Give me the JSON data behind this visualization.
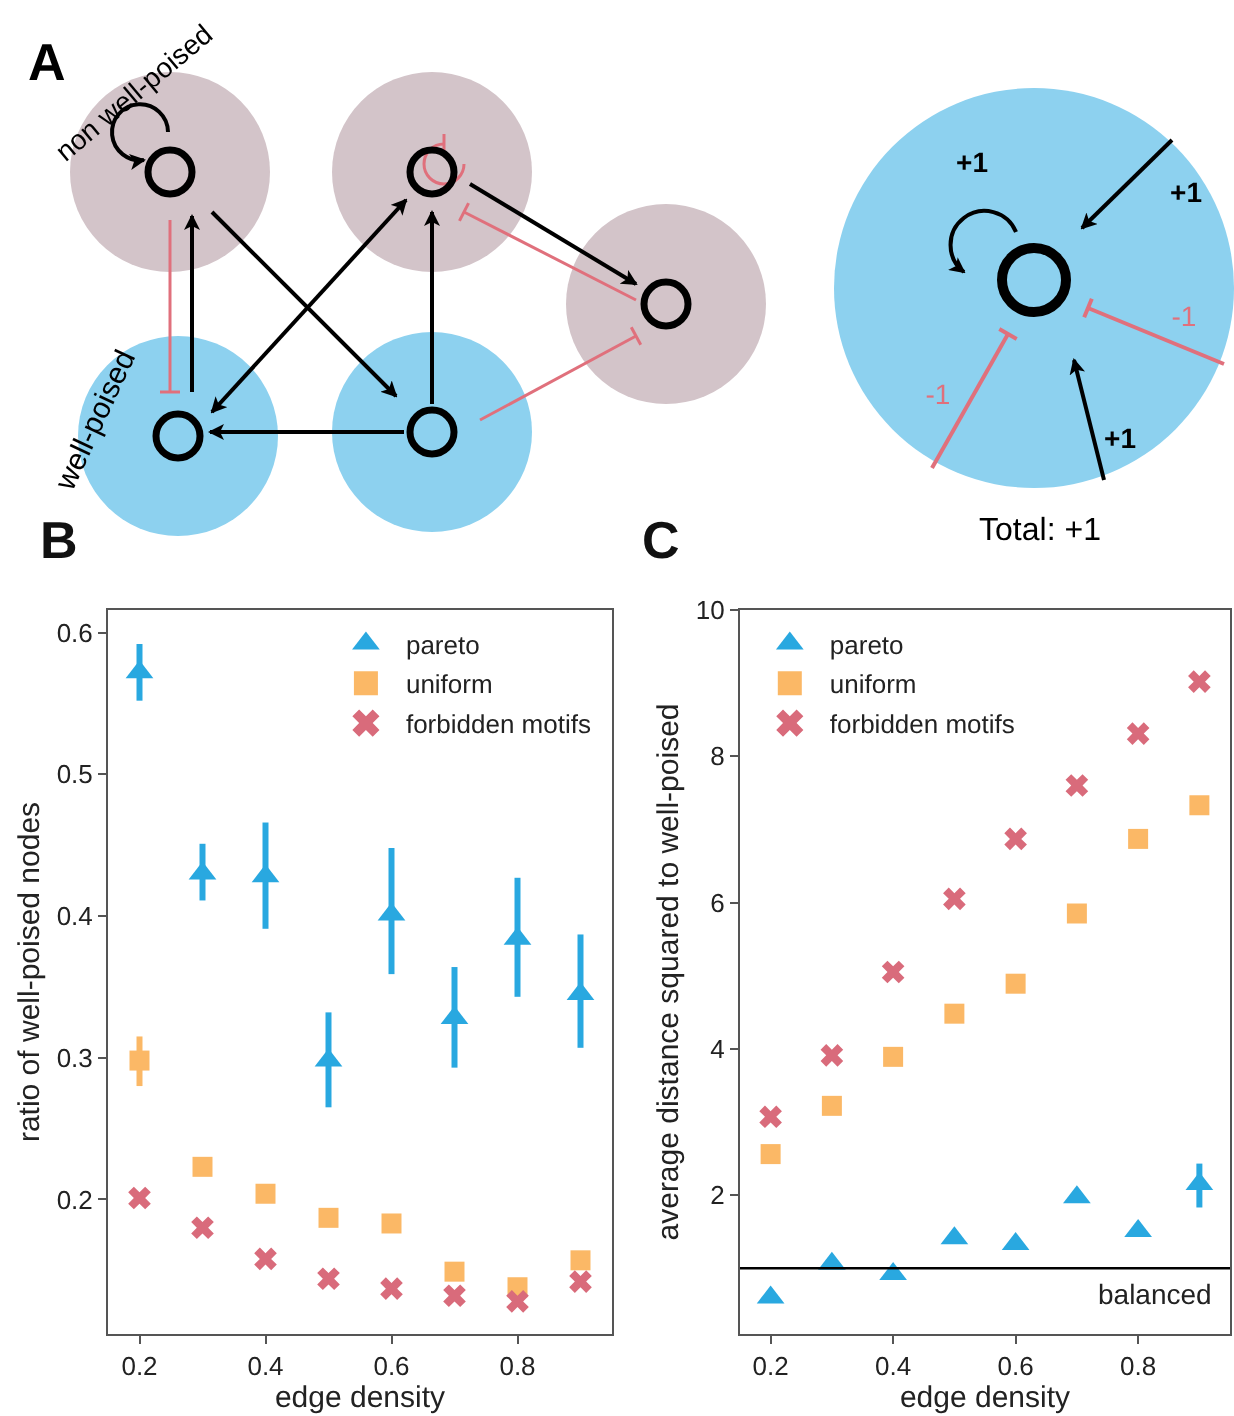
{
  "chart_data": [
    {
      "type": "other",
      "annotations": [
        "A",
        "non well-poised",
        "well-poised",
        "+1",
        "+1",
        "+1",
        "-1",
        "-1",
        "Total: +1"
      ]
    },
    {
      "type": "scatter",
      "annotations": [
        "B"
      ],
      "xlabel": "edge density",
      "ylabel": "ratio of well-poised nodes",
      "x": [
        0.2,
        0.3,
        0.4,
        0.5,
        0.6,
        0.7,
        0.8,
        0.9
      ],
      "xlim": [
        0.15,
        0.95
      ],
      "xticks": [
        0.2,
        0.4,
        0.6,
        0.8
      ],
      "ylim": [
        0.105,
        0.616
      ],
      "yticks": [
        0.2,
        0.3,
        0.4,
        0.5,
        0.6
      ],
      "grid": false,
      "legend": "top right",
      "series": [
        {
          "name": "pareto",
          "color": "#29a8e0",
          "marker": "triangle",
          "values": [
            0.572,
            0.43,
            0.428,
            0.298,
            0.401,
            0.328,
            0.384,
            0.345
          ],
          "errors": [
            [
              0.552,
              0.592
            ],
            [
              0.411,
              0.451
            ],
            [
              0.391,
              0.466
            ],
            [
              0.265,
              0.332
            ],
            [
              0.359,
              0.448
            ],
            [
              0.293,
              0.364
            ],
            [
              0.343,
              0.427
            ],
            [
              0.307,
              0.387
            ]
          ]
        },
        {
          "name": "uniform",
          "color": "#fbb866",
          "marker": "square",
          "values": [
            0.298,
            0.223,
            0.204,
            0.187,
            0.183,
            0.149,
            0.138,
            0.157
          ],
          "errors": [
            [
              0.28,
              0.315
            ],
            null,
            null,
            null,
            null,
            null,
            null,
            null
          ]
        },
        {
          "name": "forbidden motifs",
          "color": "#d96b7b",
          "marker": "cross",
          "values": [
            0.201,
            0.18,
            0.158,
            0.144,
            0.137,
            0.132,
            0.128,
            0.142
          ]
        }
      ]
    },
    {
      "type": "scatter",
      "annotations": [
        "C"
      ],
      "xlabel": "edge density",
      "ylabel": "average distance squared to well-poised",
      "x": [
        0.2,
        0.3,
        0.4,
        0.5,
        0.6,
        0.7,
        0.8,
        0.9
      ],
      "xlim": [
        0.15,
        0.95
      ],
      "xticks": [
        0.2,
        0.4,
        0.6,
        0.8
      ],
      "ylim": [
        0.1,
        10
      ],
      "yticks": [
        2,
        4,
        6,
        8,
        10
      ],
      "grid": false,
      "legend": "top left",
      "ref_lines": [
        {
          "axis": "y",
          "value": 1,
          "label": "balanced",
          "color": "#000000"
        }
      ],
      "series": [
        {
          "name": "pareto",
          "color": "#29a8e0",
          "marker": "triangle",
          "values": [
            0.6,
            1.06,
            0.92,
            1.41,
            1.33,
            1.97,
            1.51,
            2.15
          ],
          "errors": [
            null,
            null,
            null,
            null,
            null,
            null,
            null,
            [
              1.83,
              2.43
            ]
          ]
        },
        {
          "name": "uniform",
          "color": "#fbb866",
          "marker": "square",
          "values": [
            2.56,
            3.22,
            3.89,
            4.48,
            4.89,
            5.85,
            6.87,
            7.33
          ]
        },
        {
          "name": "forbidden motifs",
          "color": "#d96b7b",
          "marker": "cross",
          "values": [
            3.07,
            3.91,
            5.05,
            6.05,
            6.87,
            7.6,
            8.31,
            9.02
          ]
        }
      ]
    }
  ]
}
